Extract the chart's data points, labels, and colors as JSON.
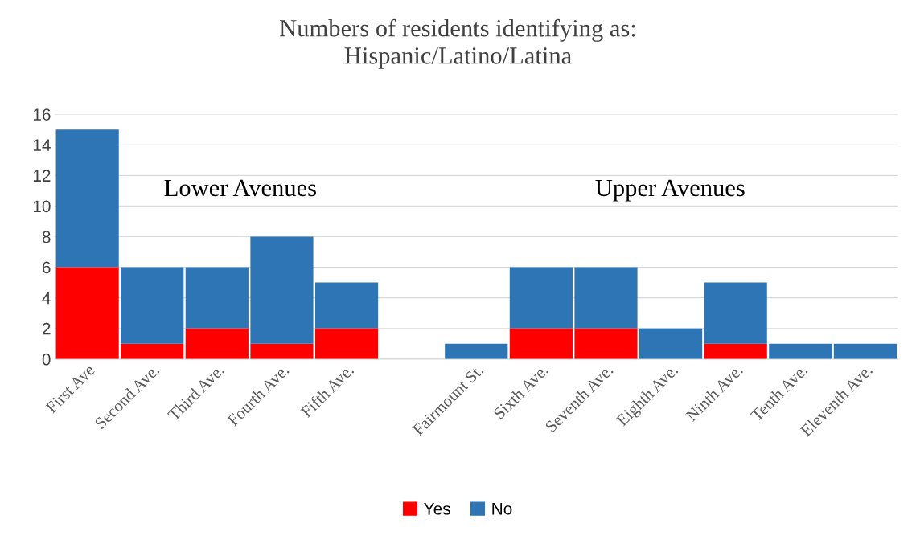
{
  "chart_data": {
    "type": "bar",
    "stacked": true,
    "title": "Numbers of residents identifying as:\nHispanic/Latino/Latina",
    "categories": [
      "First Ave",
      "Second Ave.",
      "Third Ave.",
      "Fourth Ave.",
      "Fifth Ave.",
      null,
      "Fairmount St.",
      "Sixth Ave.",
      "Seventh Ave.",
      "Eighth Ave.",
      "Ninth Ave.",
      "Tenth Ave.",
      "Eleventh Ave."
    ],
    "series": [
      {
        "name": "Yes",
        "color": "#ff0000",
        "values": [
          6,
          1,
          2,
          1,
          2,
          null,
          0,
          2,
          2,
          0,
          1,
          0,
          0
        ]
      },
      {
        "name": "No",
        "color": "#2e75b6",
        "values": [
          9,
          5,
          4,
          7,
          3,
          null,
          1,
          4,
          4,
          2,
          4,
          1,
          1
        ]
      }
    ],
    "ylim": [
      0,
      16
    ],
    "yticks": [
      0,
      2,
      4,
      6,
      8,
      10,
      12,
      14,
      16
    ],
    "grid": "y",
    "legend": "bottom",
    "annotations": [
      "Lower Avenues",
      "Upper Avenues"
    ]
  }
}
